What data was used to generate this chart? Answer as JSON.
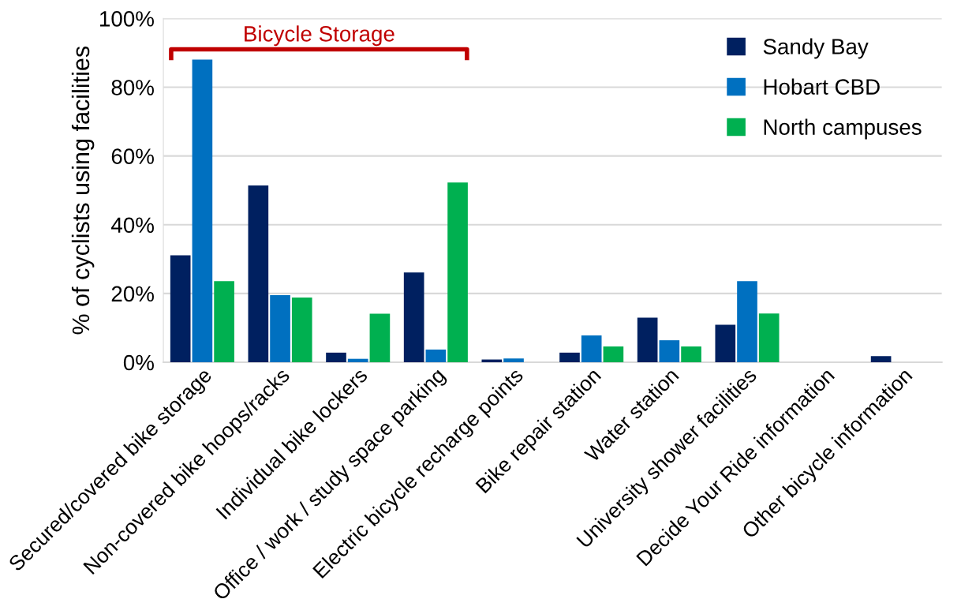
{
  "chart_data": {
    "type": "bar",
    "ylabel": "% of cyclists using facilities",
    "categories": [
      "Secured/covered bike storage",
      "Non-covered bike hoops/racks",
      "Individual bike lockers",
      "Office / work / study space parking",
      "Electric bicycle recharge points",
      "Bike repair station",
      "Water station",
      "University shower facilities",
      "Decide Your Ride information",
      "Other bicycle information"
    ],
    "series": [
      {
        "name": "Sandy Bay",
        "color": "#002060",
        "values": [
          31.1,
          51.4,
          2.8,
          26.1,
          0.8,
          2.8,
          13.0,
          10.9,
          0,
          1.8
        ]
      },
      {
        "name": "Hobart CBD",
        "color": "#0070c0",
        "values": [
          88.0,
          19.5,
          1.0,
          3.7,
          1.1,
          7.8,
          6.4,
          23.6,
          0,
          0
        ]
      },
      {
        "name": "North campuses",
        "color": "#00b050",
        "values": [
          23.6,
          18.8,
          14.1,
          52.3,
          0,
          4.6,
          4.6,
          14.2,
          0,
          0
        ]
      }
    ],
    "ylim": [
      0,
      100
    ],
    "yticks": [
      {
        "value": 0,
        "label": "0%"
      },
      {
        "value": 20,
        "label": "20%"
      },
      {
        "value": 40,
        "label": "40%"
      },
      {
        "value": 60,
        "label": "60%"
      },
      {
        "value": 80,
        "label": "80%"
      },
      {
        "value": 100,
        "label": "100%"
      }
    ],
    "grid": "y",
    "legend": "top right",
    "annotations": [
      "Bicycle Storage"
    ]
  }
}
